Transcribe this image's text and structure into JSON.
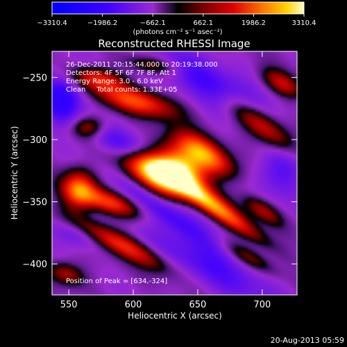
{
  "chart_data": {
    "type": "heatmap",
    "title": "Reconstructed RHESSI Image",
    "xlabel": "Heliocentric X (arcsec)",
    "ylabel": "Heliocentric Y (arcsec)",
    "xlim": [
      537,
      727
    ],
    "ylim": [
      -425,
      -229
    ],
    "xticks": [
      550,
      600,
      650,
      700
    ],
    "yticks": [
      -250,
      -300,
      -350,
      -400
    ],
    "colorbar": {
      "label": "(photons cm⁻² s⁻¹ asec⁻²)",
      "min": -3310.4,
      "max": 3310.4,
      "ticks": [
        -3310.4,
        -1986.2,
        -662.1,
        662.1,
        1986.2,
        3310.4
      ],
      "tick_labels": [
        "−3310.4",
        "−1986.2",
        "−662.1",
        "662.1",
        "1986.2",
        "3310.4"
      ],
      "position": "top"
    },
    "annotations": [
      "26-Dec-2011 20:15:44.000 to 20:19:38.000",
      "Detectors: 4F 5F 6F 7F 8F, Att 1",
      "Energy Range: 3.0 - 6.0 keV",
      "Clean     Total counts: 1.33E+05"
    ],
    "peak_text": "Position of Peak = [634,-324]",
    "peak": {
      "x": 634,
      "y": -324,
      "value": 3310.4
    },
    "grid": false,
    "features": [
      {
        "x": 634,
        "y": -324,
        "value": 3310.4,
        "sx": 16,
        "sy": 14,
        "rot": 0
      },
      {
        "x": 612,
        "y": -325,
        "value": 1700,
        "sx": 16,
        "sy": 8,
        "rot": -25
      },
      {
        "x": 657,
        "y": -312,
        "value": 1650,
        "sx": 18,
        "sy": 7,
        "rot": -35
      },
      {
        "x": 700,
        "y": -289,
        "value": 1300,
        "sx": 22,
        "sy": 7,
        "rot": -38
      },
      {
        "x": 602,
        "y": -269,
        "value": 1700,
        "sx": 22,
        "sy": 7,
        "rot": -15
      },
      {
        "x": 572,
        "y": -251,
        "value": 1200,
        "sx": 14,
        "sy": 6,
        "rot": -10
      },
      {
        "x": 565,
        "y": -290,
        "value": 850,
        "sx": 9,
        "sy": 6,
        "rot": 0
      },
      {
        "x": 558,
        "y": -340,
        "value": 1800,
        "sx": 9,
        "sy": 11,
        "rot": 0
      },
      {
        "x": 580,
        "y": -350,
        "value": 1500,
        "sx": 18,
        "sy": 6,
        "rot": -20
      },
      {
        "x": 647,
        "y": -340,
        "value": 1400,
        "sx": 30,
        "sy": 6,
        "rot": -35
      },
      {
        "x": 590,
        "y": -384,
        "value": 1500,
        "sx": 28,
        "sy": 6,
        "rot": -28
      },
      {
        "x": 667,
        "y": -358,
        "value": 1100,
        "sx": 32,
        "sy": 5,
        "rot": -35
      },
      {
        "x": 700,
        "y": -357,
        "value": 700,
        "sx": 12,
        "sy": 5,
        "rot": -35
      },
      {
        "x": 716,
        "y": -255,
        "value": 1000,
        "sx": 12,
        "sy": 6,
        "rot": -30
      },
      {
        "x": 615,
        "y": -240,
        "value": 550,
        "sx": 14,
        "sy": 5,
        "rot": -10
      },
      {
        "x": 548,
        "y": -408,
        "value": 800,
        "sx": 10,
        "sy": 6,
        "rot": -20
      },
      {
        "x": 690,
        "y": -395,
        "value": 500,
        "sx": 16,
        "sy": 5,
        "rot": -30
      },
      {
        "x": 545,
        "y": -267,
        "value": -1600,
        "sx": 11,
        "sy": 14,
        "rot": 0
      },
      {
        "x": 595,
        "y": -305,
        "value": -1200,
        "sx": 24,
        "sy": 7,
        "rot": -25
      },
      {
        "x": 625,
        "y": -358,
        "value": -1100,
        "sx": 32,
        "sy": 7,
        "rot": -35
      },
      {
        "x": 660,
        "y": -255,
        "value": -1300,
        "sx": 36,
        "sy": 10,
        "rot": -30
      },
      {
        "x": 660,
        "y": -400,
        "value": -1000,
        "sx": 40,
        "sy": 12,
        "rot": -30
      },
      {
        "x": 715,
        "y": -325,
        "value": -900,
        "sx": 14,
        "sy": 14,
        "rot": 0
      },
      {
        "x": 555,
        "y": -377,
        "value": -800,
        "sx": 14,
        "sy": 7,
        "rot": -20
      }
    ]
  },
  "footer": {
    "date": "20-Aug-2013 05:59"
  }
}
